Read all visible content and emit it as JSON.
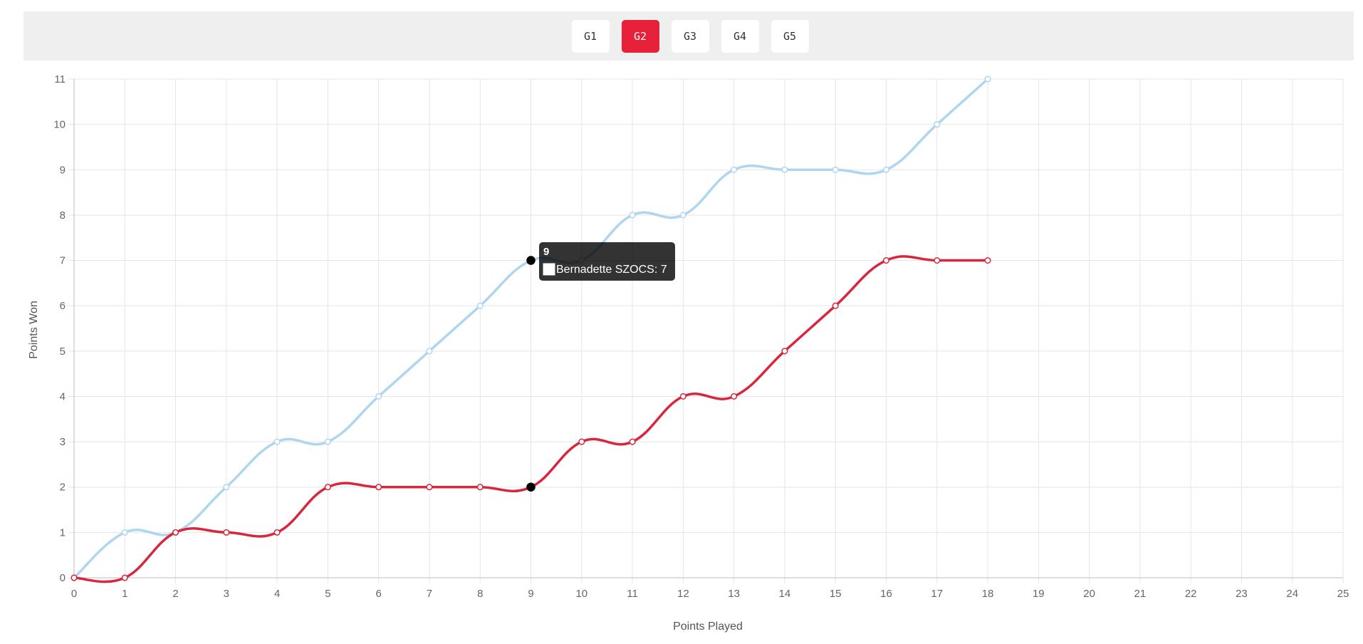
{
  "tabs": [
    {
      "label": "G1",
      "active": false
    },
    {
      "label": "G2",
      "active": true
    },
    {
      "label": "G3",
      "active": false
    },
    {
      "label": "G4",
      "active": false
    },
    {
      "label": "G5",
      "active": false
    }
  ],
  "tooltip": {
    "title": "9",
    "body": "Bernadette SZOCS: 7",
    "swatch_color": "#ffffff"
  },
  "chart_data": {
    "type": "line",
    "title": "",
    "xlabel": "Points Played",
    "ylabel": "Points Won",
    "xlim": [
      0,
      25
    ],
    "ylim": [
      0,
      11
    ],
    "x_ticks": [
      0,
      1,
      2,
      3,
      4,
      5,
      6,
      7,
      8,
      9,
      10,
      11,
      12,
      13,
      14,
      15,
      16,
      17,
      18,
      19,
      20,
      21,
      22,
      23,
      24,
      25
    ],
    "y_ticks": [
      0,
      1,
      2,
      3,
      4,
      5,
      6,
      7,
      8,
      9,
      10,
      11
    ],
    "grid": true,
    "series": [
      {
        "color": "#aed6f1",
        "x": [
          0,
          1,
          2,
          3,
          4,
          5,
          6,
          7,
          8,
          9,
          10,
          11,
          12,
          13,
          14,
          15,
          16,
          17,
          18
        ],
        "y": [
          0,
          1,
          1,
          2,
          3,
          3,
          4,
          5,
          6,
          7,
          7,
          8,
          8,
          9,
          9,
          9,
          9,
          10,
          11
        ]
      },
      {
        "color": "#d7263d",
        "x": [
          0,
          1,
          2,
          3,
          4,
          5,
          6,
          7,
          8,
          9,
          10,
          11,
          12,
          13,
          14,
          15,
          16,
          17,
          18
        ],
        "y": [
          0,
          0,
          1,
          1,
          1,
          2,
          2,
          2,
          2,
          2,
          3,
          3,
          4,
          4,
          5,
          6,
          7,
          7,
          7
        ]
      }
    ],
    "highlight_x": 9
  }
}
